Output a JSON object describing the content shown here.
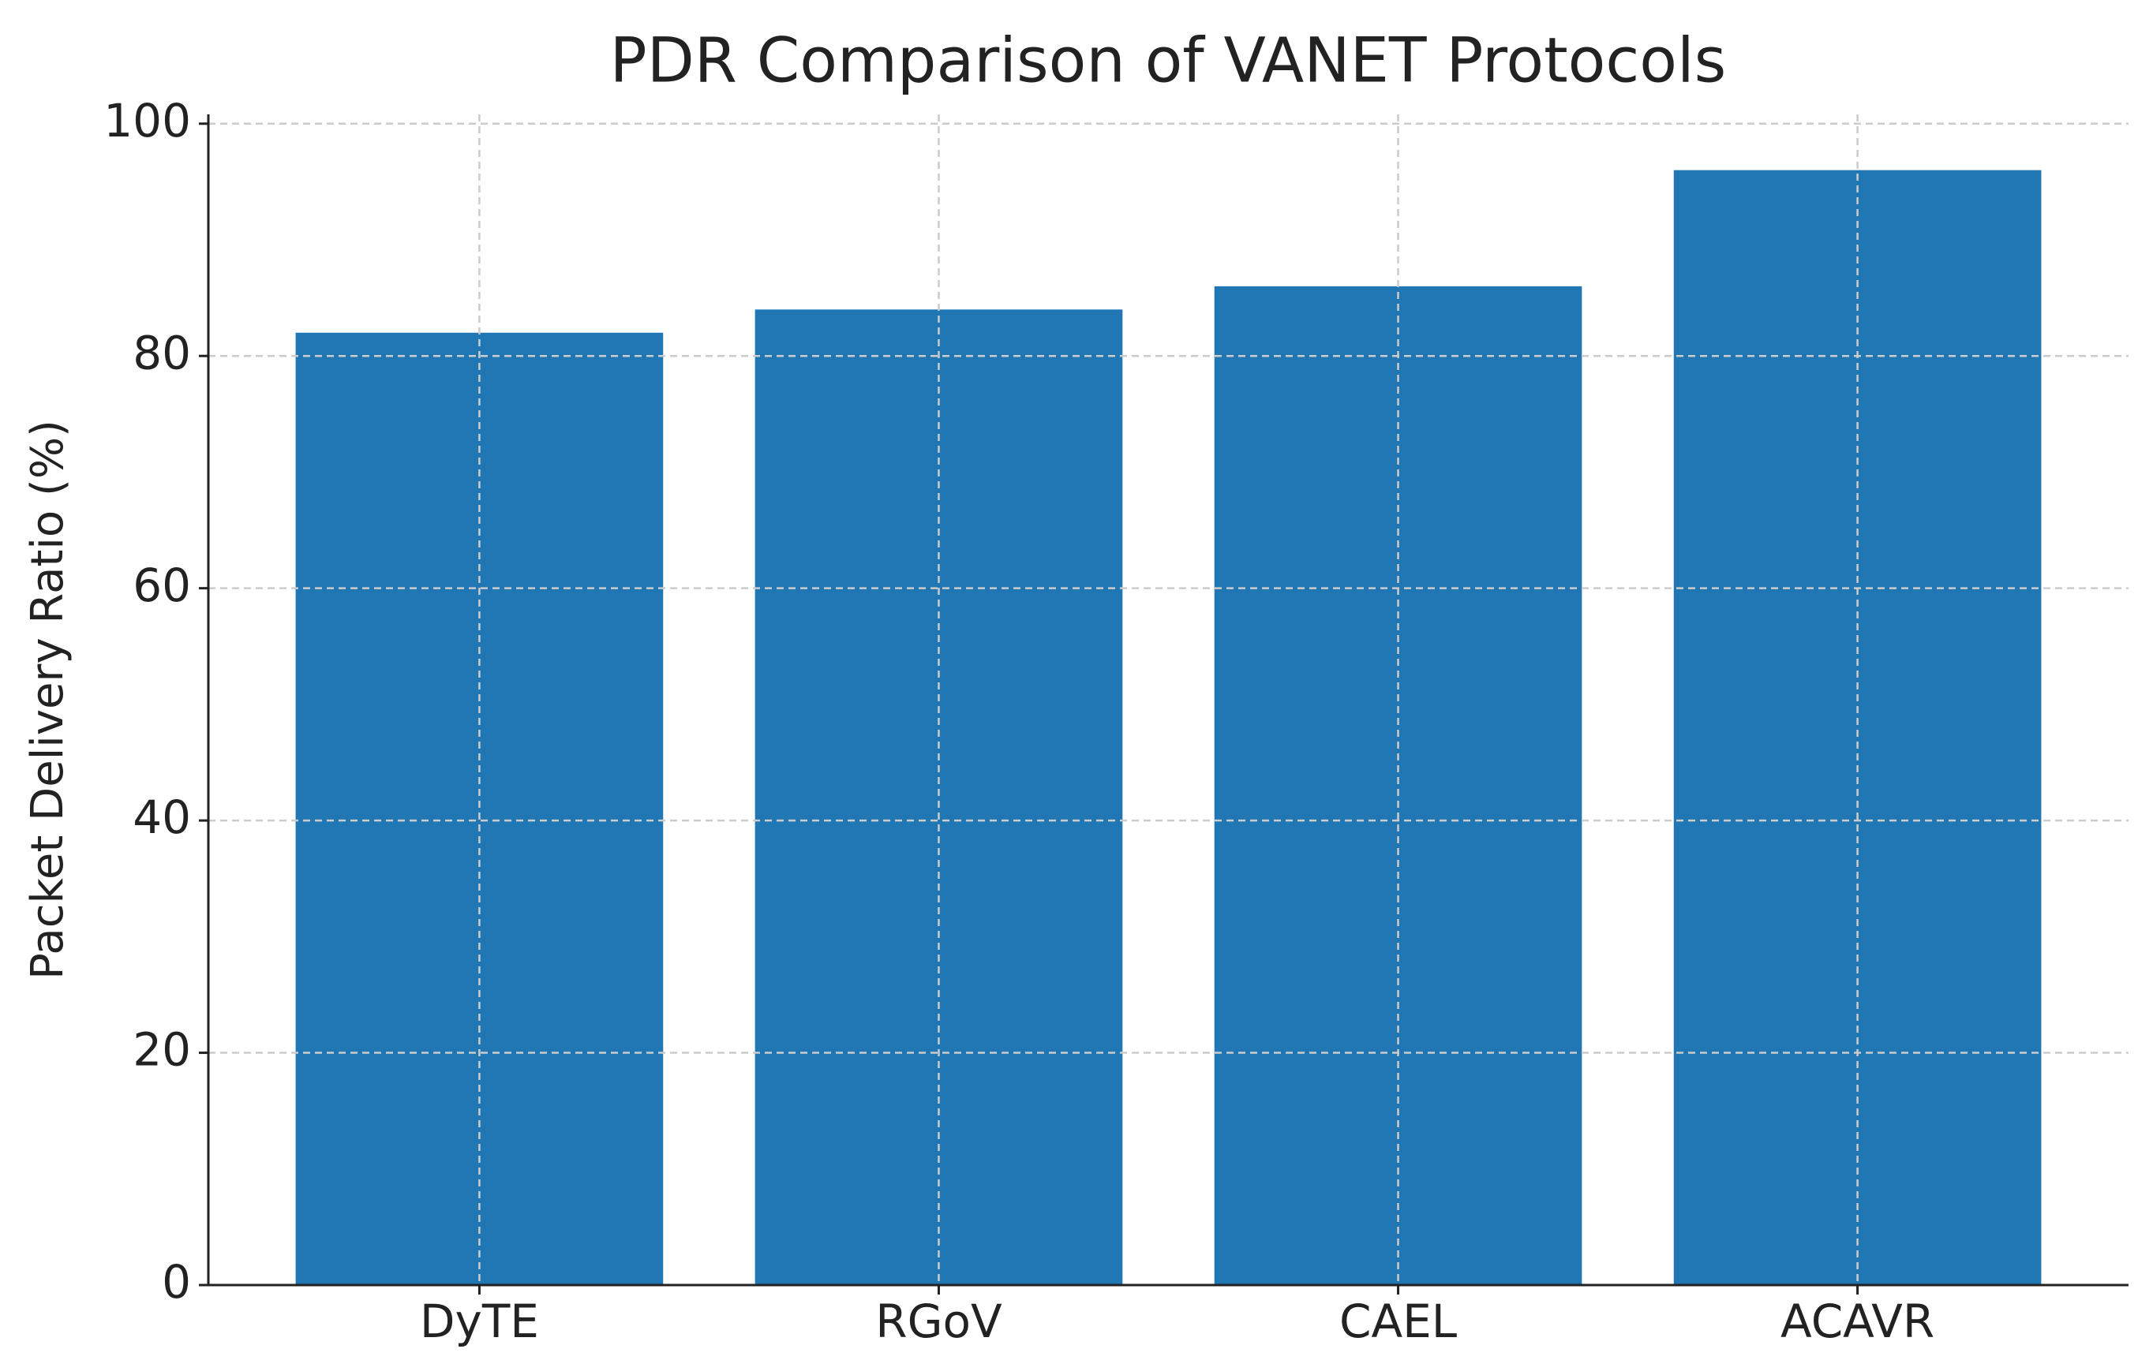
{
  "chart_data": {
    "type": "bar",
    "title": "PDR Comparison of VANET Protocols",
    "ylabel": "Packet Delivery Ratio (%)",
    "categories": [
      "DyTE",
      "RGoV",
      "CAEL",
      "ACAVR"
    ],
    "values": [
      82,
      84,
      86,
      96
    ],
    "color": "#2077b4",
    "ylim": [
      0,
      100.8
    ],
    "yticks": [
      0,
      20,
      40,
      60,
      80,
      100
    ],
    "grid": true
  }
}
